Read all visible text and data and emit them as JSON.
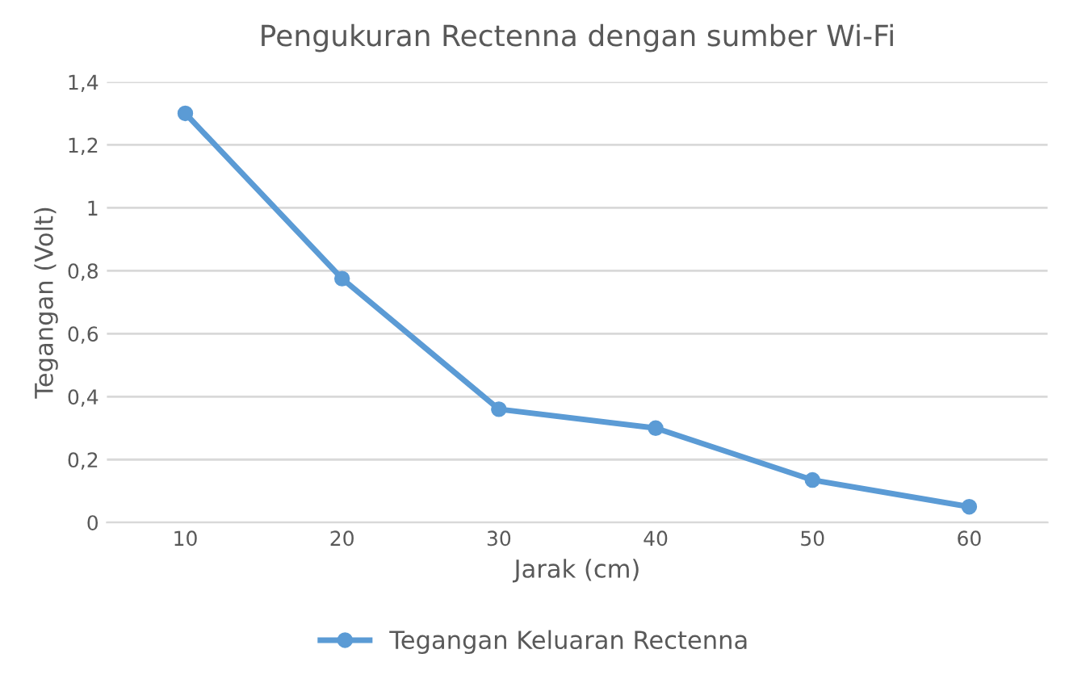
{
  "chart_data": {
    "type": "line",
    "title": "Pengukuran Rectenna dengan sumber Wi-Fi",
    "xlabel": "Jarak (cm)",
    "ylabel": "Tegangan (Volt)",
    "categories": [
      "10",
      "20",
      "30",
      "40",
      "50",
      "60"
    ],
    "series": [
      {
        "name": "Tegangan Keluaran Rectenna",
        "color": "#5b9bd5",
        "values": [
          1.3,
          0.775,
          0.36,
          0.3,
          0.135,
          0.05
        ]
      }
    ],
    "ylim": [
      0,
      1.4
    ],
    "yticks": [
      0,
      {
        "value": 0.2,
        "label": "0,2"
      },
      {
        "value": 0.4,
        "label": "0,4"
      },
      {
        "value": 0.6,
        "label": "0,6"
      },
      {
        "value": 0.8,
        "label": "0,8"
      },
      1,
      {
        "value": 1.2,
        "label": "1,2"
      },
      {
        "value": 1.4,
        "label": "1,4"
      }
    ],
    "grid": "y",
    "legend": "bottom",
    "marker": "circle",
    "line_style": "solid"
  }
}
